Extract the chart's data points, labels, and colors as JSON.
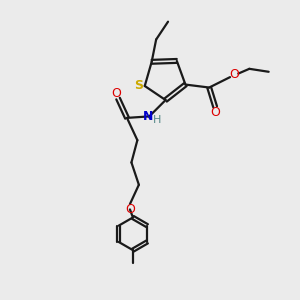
{
  "bg_color": "#ebebeb",
  "bond_color": "#1a1a1a",
  "S_color": "#ccaa00",
  "N_color": "#0000cc",
  "O_color": "#dd0000",
  "H_color": "#558888",
  "line_width": 1.6,
  "figsize": [
    3.0,
    3.0
  ],
  "dpi": 100,
  "xlim": [
    0,
    10
  ],
  "ylim": [
    0,
    10
  ]
}
